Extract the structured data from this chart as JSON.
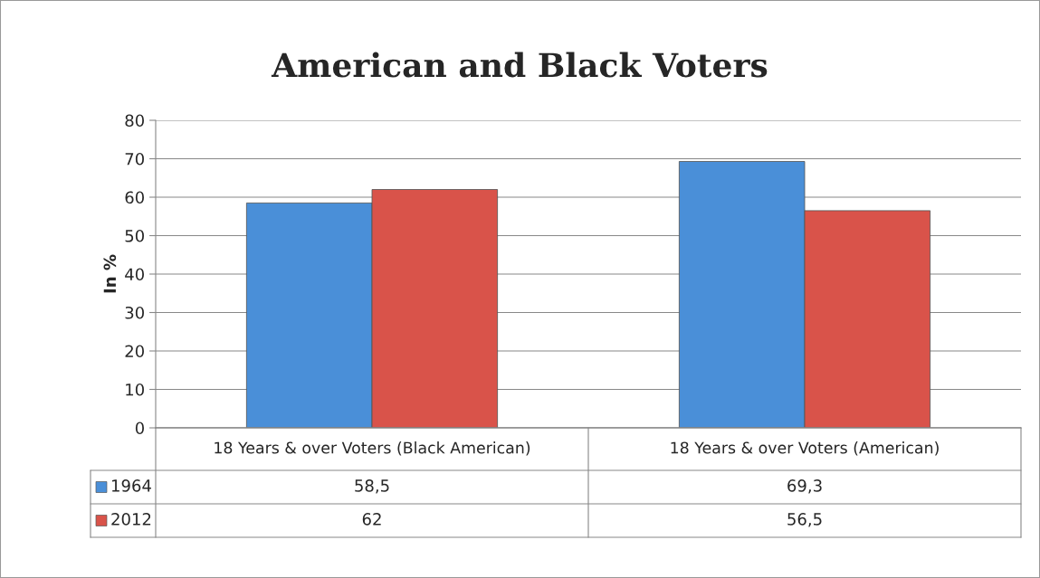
{
  "chart_data": {
    "type": "bar",
    "title": "American and Black Voters",
    "ylabel": "In %",
    "categories": [
      "18 Years & over Voters (Black American)",
      "18 Years & over Voters (American)"
    ],
    "series": [
      {
        "name": "1964",
        "color": "#4a8fd8",
        "values": [
          58.5,
          69.3
        ],
        "value_labels": [
          "58,5",
          "69,3"
        ]
      },
      {
        "name": "2012",
        "color": "#d9534a",
        "values": [
          62,
          56.5
        ],
        "value_labels": [
          "62",
          "56,5"
        ]
      }
    ],
    "ylim": [
      0,
      80
    ],
    "yticks": [
      0,
      10,
      20,
      30,
      40,
      50,
      60,
      70,
      80
    ],
    "grid": "y",
    "legend": "bottom left"
  }
}
